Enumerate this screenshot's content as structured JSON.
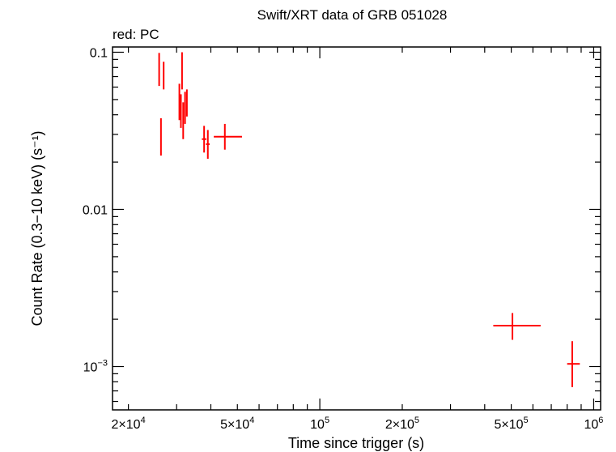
{
  "chart_data": {
    "type": "scatter",
    "title": "Swift/XRT data of GRB 051028",
    "subtitle": "red: PC",
    "xlabel": "Time since trigger (s)",
    "ylabel": "Count Rate (0.3−10 keV) (s⁻¹)",
    "xscale": "log",
    "yscale": "log",
    "xlim": [
      17500,
      1060000
    ],
    "ylim": [
      0.00053,
      0.108
    ],
    "grid": false,
    "colors": {
      "series": "#ff0000",
      "axis": "#000000"
    },
    "x_ticks": [
      {
        "value": 20000,
        "mant": "2×10",
        "exp": "4"
      },
      {
        "value": 50000,
        "mant": "5×10",
        "exp": "4"
      },
      {
        "value": 100000,
        "mant": "10",
        "exp": "5"
      },
      {
        "value": 200000,
        "mant": "2×10",
        "exp": "5"
      },
      {
        "value": 500000,
        "mant": "5×10",
        "exp": "5"
      },
      {
        "value": 1000000,
        "mant": "10",
        "exp": "6"
      }
    ],
    "y_ticks": [
      {
        "value": 0.1,
        "mant": "0.1",
        "exp": ""
      },
      {
        "value": 0.01,
        "mant": "0.01",
        "exp": ""
      },
      {
        "value": 0.001,
        "mant": "10",
        "exp": "−3"
      }
    ],
    "series": [
      {
        "color": "#ff0000",
        "points": [
          {
            "x": 25900,
            "xlo": 25800,
            "xhi": 26000,
            "y": 0.078,
            "ylo": 0.061,
            "yhi": 0.099
          },
          {
            "x": 26900,
            "xlo": 26800,
            "xhi": 27000,
            "y": 0.071,
            "ylo": 0.058,
            "yhi": 0.087
          },
          {
            "x": 26300,
            "xlo": 26200,
            "xhi": 26400,
            "y": 0.029,
            "ylo": 0.022,
            "yhi": 0.038
          },
          {
            "x": 30700,
            "xlo": 30600,
            "xhi": 30800,
            "y": 0.048,
            "ylo": 0.037,
            "yhi": 0.063
          },
          {
            "x": 31100,
            "xlo": 31000,
            "xhi": 31200,
            "y": 0.042,
            "ylo": 0.033,
            "yhi": 0.054
          },
          {
            "x": 31400,
            "xlo": 31300,
            "xhi": 31500,
            "y": 0.078,
            "ylo": 0.058,
            "yhi": 0.1
          },
          {
            "x": 31700,
            "xlo": 31600,
            "xhi": 31800,
            "y": 0.037,
            "ylo": 0.028,
            "yhi": 0.048
          },
          {
            "x": 32200,
            "xlo": 32100,
            "xhi": 32300,
            "y": 0.044,
            "ylo": 0.035,
            "yhi": 0.056
          },
          {
            "x": 32700,
            "xlo": 32600,
            "xhi": 32800,
            "y": 0.048,
            "ylo": 0.039,
            "yhi": 0.058
          },
          {
            "x": 37800,
            "xlo": 37100,
            "xhi": 38500,
            "y": 0.028,
            "ylo": 0.023,
            "yhi": 0.034
          },
          {
            "x": 39000,
            "xlo": 38400,
            "xhi": 39600,
            "y": 0.026,
            "ylo": 0.021,
            "yhi": 0.032
          },
          {
            "x": 45000,
            "xlo": 41000,
            "xhi": 52000,
            "y": 0.029,
            "ylo": 0.024,
            "yhi": 0.035
          },
          {
            "x": 505000,
            "xlo": 430000,
            "xhi": 640000,
            "y": 0.00182,
            "ylo": 0.00148,
            "yhi": 0.00219
          },
          {
            "x": 835000,
            "xlo": 800000,
            "xhi": 890000,
            "y": 0.00104,
            "ylo": 0.00074,
            "yhi": 0.00145
          }
        ]
      }
    ]
  }
}
